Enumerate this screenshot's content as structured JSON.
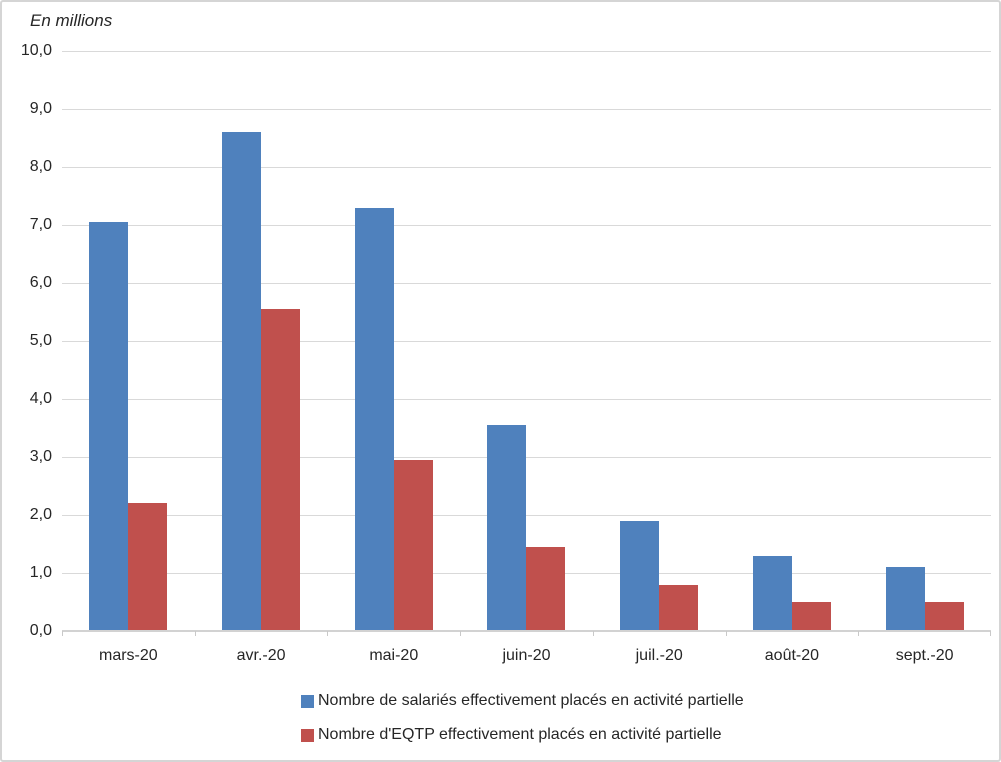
{
  "chart_data": {
    "type": "bar",
    "title": "",
    "units_label": "En millions",
    "categories": [
      "mars-20",
      "avr.-20",
      "mai-20",
      "juin-20",
      "juil.-20",
      "août-20",
      "sept.-20"
    ],
    "series": [
      {
        "name": "Nombre de salariés effectivement placés en activité partielle",
        "color": "#4F81BD",
        "values": [
          7.05,
          8.6,
          7.3,
          3.55,
          1.9,
          1.3,
          1.1
        ]
      },
      {
        "name": "Nombre d'EQTP effectivement placés en activité partielle",
        "color": "#C0504D",
        "values": [
          2.2,
          5.55,
          2.95,
          1.45,
          0.8,
          0.5,
          0.5
        ]
      }
    ],
    "y_axis": {
      "min": 0,
      "max": 10,
      "step": 1,
      "tick_labels": [
        "0,0",
        "1,0",
        "2,0",
        "3,0",
        "4,0",
        "5,0",
        "6,0",
        "7,0",
        "8,0",
        "9,0",
        "10,0"
      ]
    },
    "x_axis": {
      "label": ""
    },
    "grid": true,
    "legend_position": "bottom-left",
    "style": {
      "gridline_color": "#D9D9D9",
      "axis_color": "#D2D2D2",
      "tick_color": "#C9C9C9",
      "text_color": "#262626",
      "frame_border_color": "#D5D5D5",
      "background_color": "#FFFFFF"
    }
  }
}
